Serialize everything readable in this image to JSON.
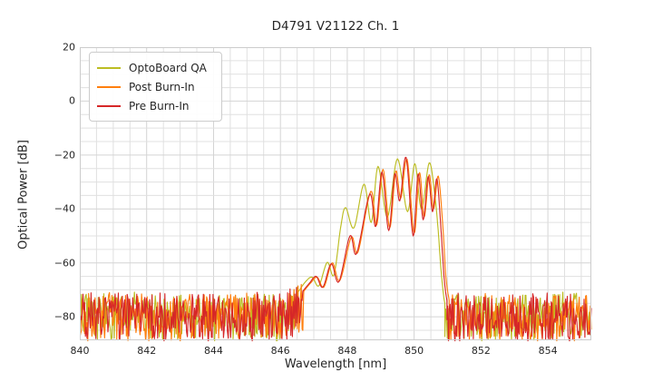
{
  "chart_data": {
    "type": "line",
    "title": "D4791 V21122 Ch. 1",
    "xlabel": "Wavelength [nm]",
    "ylabel": "Optical Power [dB]",
    "xlim": [
      840,
      855.3
    ],
    "ylim": [
      -88.7,
      20
    ],
    "x_major_ticks": [
      840,
      842,
      844,
      846,
      848,
      850,
      852,
      854
    ],
    "y_major_ticks": [
      20,
      0,
      -20,
      -40,
      -60,
      -80
    ],
    "x_grid_step_nm": 0.5,
    "y_grid_step_db": 5,
    "grid": true,
    "legend_position": "upper left",
    "grid_color_minor": "#e0e0e0",
    "grid_color_major": "#d4d4d4",
    "spine_color": "#cccccc",
    "noise": {
      "floor_top_db": -71.5,
      "floor_depth_db": 17.5,
      "clip_db": -88.7,
      "sample_step_nm": 0.024,
      "shoulder_lift_db": 4.5,
      "shoulder_width_nm": 0.6
    },
    "series": [
      {
        "name": "OptoBoard QA",
        "color": "#bcbd22",
        "seed": 11,
        "noise_regions": [
          [
            840,
            846.55
          ],
          [
            850.92,
            855.3
          ]
        ],
        "envelope": [
          [
            846.55,
            -70.5
          ],
          [
            846.75,
            -67.0
          ],
          [
            846.95,
            -65.3
          ],
          [
            847.15,
            -68.5
          ],
          [
            847.4,
            -59.8
          ],
          [
            847.6,
            -64.5
          ],
          [
            847.8,
            -47.0
          ],
          [
            847.95,
            -39.5
          ],
          [
            848.2,
            -47.0
          ],
          [
            848.5,
            -30.8
          ],
          [
            848.72,
            -45.0
          ],
          [
            848.92,
            -24.2
          ],
          [
            849.2,
            -43.0
          ],
          [
            849.5,
            -21.4
          ],
          [
            849.8,
            -41.0
          ],
          [
            850.02,
            -23.2
          ],
          [
            850.22,
            -40.0
          ],
          [
            850.45,
            -22.9
          ],
          [
            850.62,
            -35.0
          ],
          [
            850.72,
            -48.0
          ],
          [
            850.8,
            -62.0
          ],
          [
            850.88,
            -72.0
          ],
          [
            850.92,
            -75.0
          ]
        ]
      },
      {
        "name": "Post Burn-In",
        "color": "#ff7f0e",
        "seed": 22,
        "noise_regions": [
          [
            840,
            846.7
          ],
          [
            851.05,
            855.3
          ]
        ],
        "envelope": [
          [
            846.7,
            -70.5
          ],
          [
            846.9,
            -67.5
          ],
          [
            847.1,
            -65.3
          ],
          [
            847.3,
            -69.0
          ],
          [
            847.55,
            -60.0
          ],
          [
            847.78,
            -66.5
          ],
          [
            848.12,
            -50.5
          ],
          [
            848.32,
            -56.0
          ],
          [
            848.7,
            -33.5
          ],
          [
            848.88,
            -46.0
          ],
          [
            849.07,
            -25.3
          ],
          [
            849.27,
            -47.0
          ],
          [
            849.45,
            -26.0
          ],
          [
            849.6,
            -36.0
          ],
          [
            849.79,
            -21.6
          ],
          [
            850.0,
            -49.0
          ],
          [
            850.16,
            -26.5
          ],
          [
            850.3,
            -43.0
          ],
          [
            850.45,
            -27.3
          ],
          [
            850.58,
            -40.0
          ],
          [
            850.72,
            -27.8
          ],
          [
            850.85,
            -45.0
          ],
          [
            850.95,
            -65.0
          ],
          [
            851.05,
            -74.0
          ]
        ]
      },
      {
        "name": "Pre Burn-In",
        "color": "#d62728",
        "seed": 33,
        "noise_regions": [
          [
            840,
            846.67
          ],
          [
            850.98,
            855.3
          ]
        ],
        "envelope": [
          [
            846.67,
            -70.5
          ],
          [
            846.87,
            -67.5
          ],
          [
            847.07,
            -65.0
          ],
          [
            847.27,
            -69.0
          ],
          [
            847.52,
            -60.3
          ],
          [
            847.75,
            -67.0
          ],
          [
            848.08,
            -50.0
          ],
          [
            848.28,
            -56.5
          ],
          [
            848.67,
            -34.5
          ],
          [
            848.85,
            -46.5
          ],
          [
            849.04,
            -26.3
          ],
          [
            849.24,
            -48.0
          ],
          [
            849.42,
            -27.0
          ],
          [
            849.57,
            -37.0
          ],
          [
            849.76,
            -20.9
          ],
          [
            849.97,
            -50.0
          ],
          [
            850.12,
            -27.0
          ],
          [
            850.27,
            -44.0
          ],
          [
            850.42,
            -28.0
          ],
          [
            850.55,
            -41.0
          ],
          [
            850.68,
            -28.8
          ],
          [
            850.8,
            -47.0
          ],
          [
            850.9,
            -66.0
          ],
          [
            850.98,
            -74.0
          ]
        ]
      }
    ]
  }
}
